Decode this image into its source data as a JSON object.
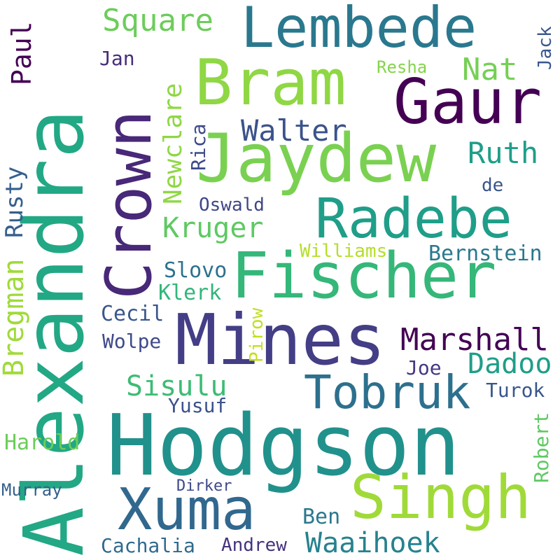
{
  "words": [
    {
      "text": "Hodgson",
      "color": "#21918c",
      "rotated": false
    },
    {
      "text": "Alexandra",
      "color": "#22a884",
      "rotated": true
    },
    {
      "text": "Mines",
      "color": "#433e85",
      "rotated": false
    },
    {
      "text": "Fischer",
      "color": "#35b779",
      "rotated": false
    },
    {
      "text": "Jaydew",
      "color": "#7ad151",
      "rotated": false
    },
    {
      "text": "Crown",
      "color": "#482878",
      "rotated": true
    },
    {
      "text": "Singh",
      "color": "#a0da39",
      "rotated": false
    },
    {
      "text": "Lembede",
      "color": "#2a788e",
      "rotated": false
    },
    {
      "text": "Bram",
      "color": "#8fd744",
      "rotated": false
    },
    {
      "text": "Gaur",
      "color": "#440154",
      "rotated": false
    },
    {
      "text": "Radebe",
      "color": "#1f9e89",
      "rotated": false
    },
    {
      "text": "Xuma",
      "color": "#31688e",
      "rotated": false
    },
    {
      "text": "Tobruk",
      "color": "#2d708e",
      "rotated": false
    },
    {
      "text": "Marshall",
      "color": "#440154",
      "rotated": false
    },
    {
      "text": "Dadoo",
      "color": "#1f9e89",
      "rotated": false
    },
    {
      "text": "Sisulu",
      "color": "#3dbc74",
      "rotated": false
    },
    {
      "text": "Waaihoek",
      "color": "#26828e",
      "rotated": false
    },
    {
      "text": "Walter",
      "color": "#3b528b",
      "rotated": false
    },
    {
      "text": "Ruth",
      "color": "#1f9e89",
      "rotated": false
    },
    {
      "text": "Kruger",
      "color": "#5ec962",
      "rotated": false
    },
    {
      "text": "Square",
      "color": "#6ccd5a",
      "rotated": false
    },
    {
      "text": "Nat",
      "color": "#75d054",
      "rotated": false
    },
    {
      "text": "Newclare",
      "color": "#8fd744",
      "rotated": true
    },
    {
      "text": "Bregman",
      "color": "#a0da39",
      "rotated": true
    },
    {
      "text": "Rusty",
      "color": "#355f8d",
      "rotated": true
    },
    {
      "text": "Paul",
      "color": "#440154",
      "rotated": true
    },
    {
      "text": "Bernstein",
      "color": "#2a788e",
      "rotated": false
    },
    {
      "text": "Williams",
      "color": "#b5de2b",
      "rotated": false
    },
    {
      "text": "Slovo",
      "color": "#2c728e",
      "rotated": false
    },
    {
      "text": "Klerk",
      "color": "#32b67a",
      "rotated": false
    },
    {
      "text": "Cecil",
      "color": "#39568c",
      "rotated": false
    },
    {
      "text": "Wolpe",
      "color": "#3e4a89",
      "rotated": false
    },
    {
      "text": "Pirow",
      "color": "#c2df23",
      "rotated": true
    },
    {
      "text": "Joe",
      "color": "#453781",
      "rotated": false
    },
    {
      "text": "Turok",
      "color": "#39568c",
      "rotated": false
    },
    {
      "text": "Yusuf",
      "color": "#3b528b",
      "rotated": false
    },
    {
      "text": "Harold",
      "color": "#6ccd5a",
      "rotated": false
    },
    {
      "text": "Robert",
      "color": "#5ec962",
      "rotated": true
    },
    {
      "text": "Murray",
      "color": "#355f8d",
      "rotated": false
    },
    {
      "text": "Dirker",
      "color": "#3e4989",
      "rotated": false
    },
    {
      "text": "Ben",
      "color": "#2a788e",
      "rotated": false
    },
    {
      "text": "Cachalia",
      "color": "#306a8e",
      "rotated": false
    },
    {
      "text": "Andrew",
      "color": "#46337e",
      "rotated": false
    },
    {
      "text": "Jan",
      "color": "#472d7b",
      "rotated": false
    },
    {
      "text": "Resha",
      "color": "#84d44b",
      "rotated": false
    },
    {
      "text": "Jack",
      "color": "#39568c",
      "rotated": true
    },
    {
      "text": "Rica",
      "color": "#3e4a89",
      "rotated": true
    },
    {
      "text": "Oswald",
      "color": "#404688",
      "rotated": false
    },
    {
      "text": "de",
      "color": "#3a548c",
      "rotated": false
    }
  ]
}
